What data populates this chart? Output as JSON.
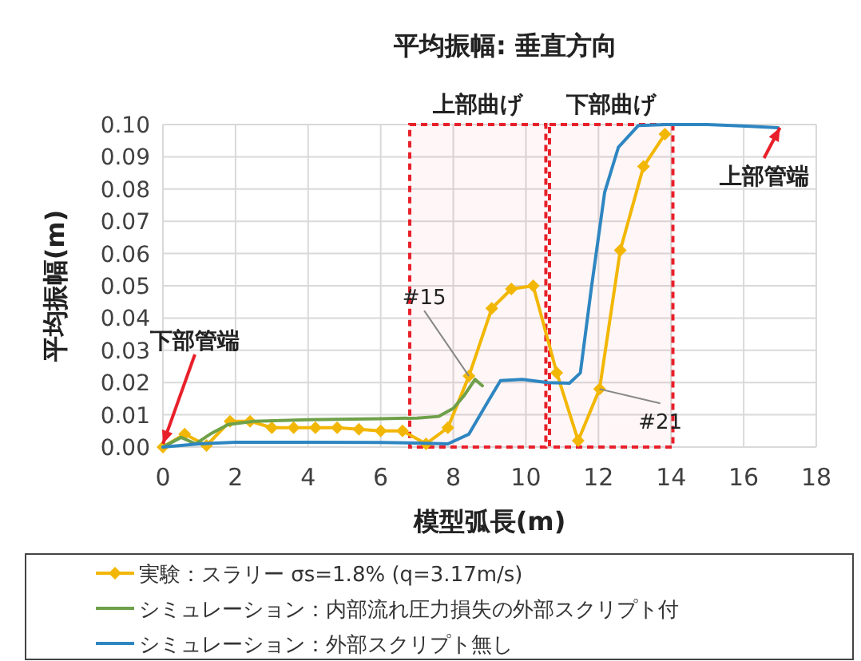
{
  "chart_data": {
    "type": "line",
    "title": "平均振幅: 垂直方向",
    "xlabel": "模型弧長(m)",
    "ylabel": "平均振幅(m)",
    "xlim": [
      0,
      18
    ],
    "xticks": [
      0,
      2,
      4,
      6,
      8,
      10,
      12,
      14,
      16,
      18
    ],
    "ylim": [
      0,
      0.1
    ],
    "yticks": [
      {
        "value": 0,
        "label": "0.00"
      },
      {
        "value": 0.01,
        "label": "0.01"
      },
      {
        "value": 0.02,
        "label": "0.02"
      },
      {
        "value": 0.03,
        "label": "0.03"
      },
      {
        "value": 0.04,
        "label": "0.04"
      },
      {
        "value": 0.05,
        "label": "0.05"
      },
      {
        "value": 0.06,
        "label": "0.06"
      },
      {
        "value": 0.07,
        "label": "0.07"
      },
      {
        "value": 0.08,
        "label": "0.08"
      },
      {
        "value": 0.09,
        "label": "0.09"
      },
      {
        "value": 0.1,
        "label": "0.10"
      }
    ],
    "grid": true,
    "legend": "bottom",
    "series": [
      {
        "name": "実験：スラリー σs=1.8% (q=3.17m/s)",
        "color": "#f2b705",
        "marker": "diamond",
        "x": [
          0,
          0.6,
          1.2,
          1.85,
          2.4,
          3.0,
          3.6,
          4.2,
          4.8,
          5.4,
          6.0,
          6.6,
          7.25,
          7.85,
          8.43,
          9.06,
          9.6,
          10.2,
          10.85,
          11.44,
          12.03,
          12.6,
          13.24,
          13.83
        ],
        "values": [
          0,
          0.004,
          0.0005,
          0.008,
          0.008,
          0.006,
          0.006,
          0.006,
          0.006,
          0.0055,
          0.005,
          0.005,
          0.001,
          0.006,
          0.022,
          0.043,
          0.049,
          0.05,
          0.023,
          0.002,
          0.018,
          0.061,
          0.087,
          0.097
        ]
      },
      {
        "name": "シミュレーション：内部流れ圧力損失の外部スクリプト付",
        "color": "#6fa04a",
        "x": [
          0,
          0.5,
          0.9,
          1.3,
          1.8,
          2.5,
          4,
          6,
          7,
          7.6,
          8.0,
          8.3,
          8.6,
          8.8
        ],
        "values": [
          0,
          0.003,
          0.001,
          0.004,
          0.007,
          0.008,
          0.0085,
          0.0088,
          0.009,
          0.0095,
          0.012,
          0.016,
          0.021,
          0.019
        ]
      },
      {
        "name": "シミュレーション：外部スクリプト無し",
        "color": "#2e86c1",
        "x": [
          0,
          1,
          2,
          4,
          6,
          7.2,
          7.85,
          8.43,
          9.0,
          9.3,
          9.9,
          10.6,
          11.2,
          11.5,
          11.8,
          12.17,
          12.55,
          13.1,
          13.86,
          15.0,
          16.07,
          16.95
        ],
        "values": [
          0,
          0.001,
          0.0015,
          0.0015,
          0.0014,
          0.0012,
          0.001,
          0.004,
          0.015,
          0.0206,
          0.021,
          0.02,
          0.0198,
          0.023,
          0.049,
          0.079,
          0.093,
          0.0997,
          0.1,
          0.1,
          0.0995,
          0.099
        ]
      }
    ],
    "bands": [
      {
        "axis": "x",
        "from": 6.8,
        "to": 10.55,
        "label": "上部曲げ",
        "color": "#e8202a"
      },
      {
        "axis": "x",
        "from": 10.65,
        "to": 14.05,
        "label": "下部曲げ",
        "color": "#e8202a"
      }
    ],
    "annotations": [
      {
        "text": "下部管端",
        "x": 0,
        "y": 0.001
      },
      {
        "text": "上部管端",
        "x": 17,
        "y": 0.099
      },
      {
        "text": "#15",
        "x": 8.43,
        "y": 0.022
      },
      {
        "text": "#21",
        "x": 12.03,
        "y": 0.018
      }
    ]
  }
}
